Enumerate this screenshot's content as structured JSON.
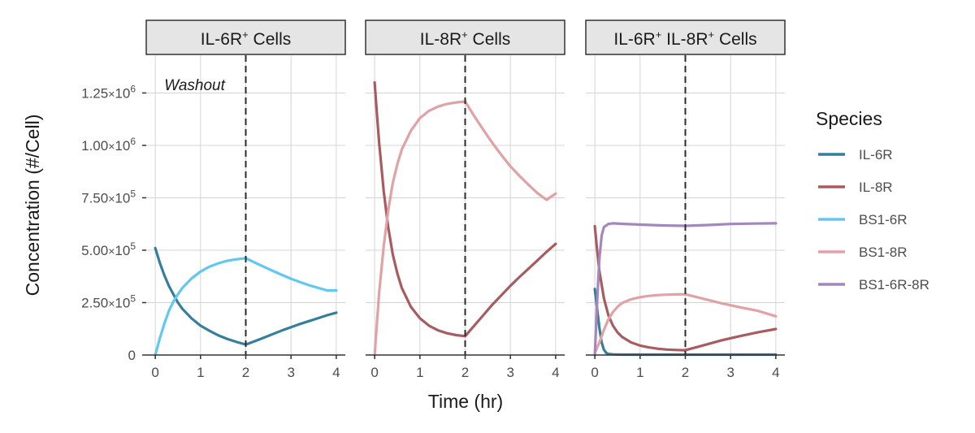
{
  "chart_data": {
    "type": "line",
    "ylabel": "Concentration (#/Cell)",
    "xlabel": "Time (hr)",
    "xlim": [
      -0.2,
      4.2
    ],
    "ylim": [
      0,
      1430000
    ],
    "x_ticks": [
      0,
      1,
      2,
      3,
      4
    ],
    "y_ticks": [
      {
        "value": 0,
        "mantissa": "0",
        "exponent": ""
      },
      {
        "value": 250000,
        "mantissa": "2.50",
        "exponent": "5"
      },
      {
        "value": 500000,
        "mantissa": "5.00",
        "exponent": "5"
      },
      {
        "value": 750000,
        "mantissa": "7.50",
        "exponent": "5"
      },
      {
        "value": 1000000,
        "mantissa": "1.00",
        "exponent": "6"
      },
      {
        "value": 1250000,
        "mantissa": "1.25",
        "exponent": "6"
      }
    ],
    "times_label": "×",
    "base_label": "10",
    "grid": true,
    "washout_time": 2,
    "annotation": {
      "text": "Washout",
      "x": 0.2,
      "y": 1290000
    },
    "legend": {
      "title": "Species",
      "position": "right",
      "items": [
        {
          "name": "IL-6R",
          "color": "#367f9c"
        },
        {
          "name": "IL-8R",
          "color": "#a85c60"
        },
        {
          "name": "BS1-6R",
          "color": "#62c7f2"
        },
        {
          "name": "BS1-8R",
          "color": "#e0a2a4"
        },
        {
          "name": "BS1-6R-8R",
          "color": "#a586bd"
        }
      ]
    },
    "panels": [
      {
        "title_main": "IL-6R",
        "title_sup": "+",
        "title_rest": " Cells",
        "series": [
          {
            "name": "IL-6R",
            "color": "#367f9c",
            "x": [
              0,
              0.1,
              0.2,
              0.3,
              0.4,
              0.5,
              0.6,
              0.8,
              1.0,
              1.2,
              1.4,
              1.6,
              1.8,
              2.0,
              2.2,
              2.4,
              2.6,
              2.8,
              3.0,
              3.2,
              3.4,
              3.6,
              3.8,
              4.0
            ],
            "y": [
              510000,
              440000,
              380000,
              330000,
              290000,
              250000,
              220000,
              175000,
              140000,
              115000,
              93000,
              76000,
              62000,
              50000,
              66000,
              83000,
              100000,
              117000,
              133000,
              148000,
              162000,
              176000,
              190000,
              202000
            ]
          },
          {
            "name": "BS1-6R",
            "color": "#62c7f2",
            "x": [
              0,
              0.1,
              0.2,
              0.3,
              0.4,
              0.5,
              0.6,
              0.8,
              1.0,
              1.2,
              1.4,
              1.6,
              1.8,
              2.0,
              2.2,
              2.4,
              2.6,
              2.8,
              3.0,
              3.2,
              3.4,
              3.6,
              3.8,
              4.0
            ],
            "y": [
              0,
              80000,
              150000,
              210000,
              255000,
              290000,
              320000,
              365000,
              398000,
              422000,
              438000,
              450000,
              457000,
              462000,
              441000,
              421000,
              401000,
              382000,
              364000,
              348000,
              333000,
              320000,
              308000,
              308000
            ]
          }
        ]
      },
      {
        "title_main": "IL-8R",
        "title_sup": "+",
        "title_rest": " Cells",
        "series": [
          {
            "name": "IL-8R",
            "color": "#a85c60",
            "x": [
              0,
              0.05,
              0.1,
              0.2,
              0.3,
              0.4,
              0.5,
              0.6,
              0.8,
              1.0,
              1.2,
              1.4,
              1.6,
              1.8,
              2.0,
              2.2,
              2.4,
              2.6,
              2.8,
              3.0,
              3.2,
              3.4,
              3.6,
              3.8,
              4.0
            ],
            "y": [
              1300000,
              1150000,
              1010000,
              780000,
              610000,
              480000,
              390000,
              320000,
              230000,
              175000,
              140000,
              118000,
              104000,
              95000,
              90000,
              140000,
              190000,
              240000,
              285000,
              330000,
              372000,
              412000,
              452000,
              492000,
              530000
            ]
          },
          {
            "name": "BS1-8R",
            "color": "#e0a2a4",
            "x": [
              0,
              0.05,
              0.1,
              0.2,
              0.3,
              0.4,
              0.5,
              0.6,
              0.8,
              1.0,
              1.2,
              1.4,
              1.6,
              1.8,
              2.0,
              2.2,
              2.4,
              2.6,
              2.8,
              3.0,
              3.2,
              3.4,
              3.6,
              3.8,
              4.0
            ],
            "y": [
              0,
              150000,
              300000,
              520000,
              690000,
              820000,
              910000,
              980000,
              1070000,
              1130000,
              1165000,
              1185000,
              1198000,
              1205000,
              1210000,
              1140000,
              1075000,
              1012000,
              955000,
              900000,
              855000,
              812000,
              772000,
              740000,
              770000
            ]
          }
        ]
      },
      {
        "title_main": "IL-6R",
        "title_sup": "+",
        "title_mid": " IL-8R",
        "title_sup2": "+",
        "title_rest": " Cells",
        "series": [
          {
            "name": "IL-6R",
            "color": "#367f9c",
            "x": [
              0,
              0.05,
              0.1,
              0.15,
              0.2,
              0.25,
              0.3,
              0.4,
              0.6,
              1.0,
              2.0,
              3.0,
              4.0
            ],
            "y": [
              315000,
              220000,
              130000,
              60000,
              25000,
              10000,
              5000,
              3000,
              2000,
              2000,
              2000,
              2000,
              2000
            ]
          },
          {
            "name": "IL-8R",
            "color": "#a85c60",
            "x": [
              0,
              0.05,
              0.1,
              0.2,
              0.3,
              0.4,
              0.5,
              0.6,
              0.8,
              1.0,
              1.2,
              1.4,
              1.6,
              1.8,
              2.0,
              2.4,
              2.8,
              3.2,
              3.6,
              4.0
            ],
            "y": [
              615000,
              500000,
              400000,
              270000,
              190000,
              140000,
              108000,
              87000,
              60000,
              45000,
              36000,
              30000,
              26000,
              24000,
              23000,
              46000,
              70000,
              90000,
              108000,
              124000
            ]
          },
          {
            "name": "BS1-8R",
            "color": "#e0a2a4",
            "x": [
              0,
              0.1,
              0.2,
              0.3,
              0.4,
              0.5,
              0.6,
              0.8,
              1.0,
              1.2,
              1.4,
              1.6,
              1.8,
              2.0,
              2.4,
              2.8,
              3.2,
              3.6,
              4.0
            ],
            "y": [
              10000,
              60000,
              120000,
              170000,
              205000,
              230000,
              248000,
              266000,
              276000,
              282000,
              286000,
              288000,
              289000,
              290000,
              268000,
              247000,
              228000,
              211000,
              185000
            ]
          },
          {
            "name": "BS1-6R-8R",
            "color": "#a586bd",
            "x": [
              0,
              0.05,
              0.1,
              0.15,
              0.2,
              0.3,
              0.4,
              0.6,
              1.0,
              1.5,
              2.0,
              2.5,
              3.0,
              3.5,
              4.0
            ],
            "y": [
              0,
              250000,
              460000,
              570000,
              610000,
              625000,
              628000,
              626000,
              622000,
              618000,
              616000,
              620000,
              625000,
              627000,
              628000
            ]
          }
        ]
      }
    ]
  }
}
